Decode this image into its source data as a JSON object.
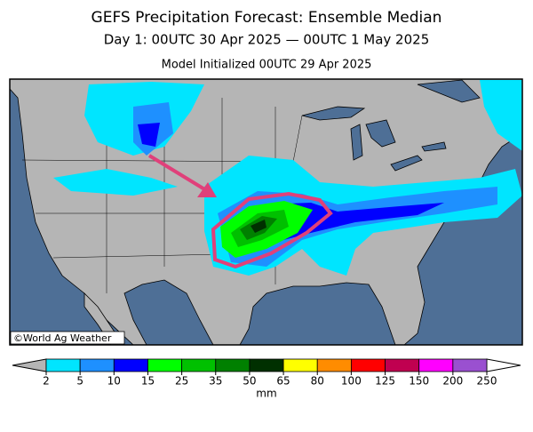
{
  "header": {
    "title": "GEFS Precipitation Forecast: Ensemble Median",
    "subtitle": "Day 1: 00UTC 30 Apr 2025 — 00UTC 1 May 2025",
    "initialized": "Model Initialized 00UTC 29 Apr 2025"
  },
  "map": {
    "credit": "©World Ag Weather"
  },
  "colorbar": {
    "ticks": [
      2,
      5,
      10,
      15,
      25,
      35,
      50,
      65,
      80,
      100,
      125,
      150,
      200,
      250
    ],
    "colors": [
      "#00e5ff",
      "#1e90ff",
      "#0000ff",
      "#00ff00",
      "#00c000",
      "#008000",
      "#003000",
      "#ffff00",
      "#ff8c00",
      "#ff0000",
      "#c00050",
      "#ff00ff",
      "#9a50d0"
    ],
    "unit": "mm"
  }
}
